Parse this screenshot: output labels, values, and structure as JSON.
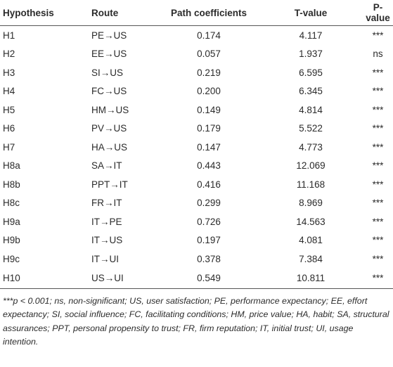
{
  "table": {
    "headers": [
      "Hypothesis",
      "Route",
      "Path coefficients",
      "T-value",
      "P-value"
    ],
    "rows": [
      [
        "H1",
        "PE→US",
        "0.174",
        "4.117",
        "***"
      ],
      [
        "H2",
        "EE→US",
        "0.057",
        "1.937",
        "ns"
      ],
      [
        "H3",
        "SI→US",
        "0.219",
        "6.595",
        "***"
      ],
      [
        "H4",
        "FC→US",
        "0.200",
        "6.345",
        "***"
      ],
      [
        "H5",
        "HM→US",
        "0.149",
        "4.814",
        "***"
      ],
      [
        "H6",
        "PV→US",
        "0.179",
        "5.522",
        "***"
      ],
      [
        "H7",
        "HA→US",
        "0.147",
        "4.773",
        "***"
      ],
      [
        "H8a",
        "SA→IT",
        "0.443",
        "12.069",
        "***"
      ],
      [
        "H8b",
        "PPT→IT",
        "0.416",
        "11.168",
        "***"
      ],
      [
        "H8c",
        "FR→IT",
        "0.299",
        "8.969",
        "***"
      ],
      [
        "H9a",
        "IT→PE",
        "0.726",
        "14.563",
        "***"
      ],
      [
        "H9b",
        "IT→US",
        "0.197",
        "4.081",
        "***"
      ],
      [
        "H9c",
        "IT→UI",
        "0.378",
        "7.384",
        "***"
      ],
      [
        "H10",
        "US→UI",
        "0.549",
        "10.811",
        "***"
      ]
    ]
  },
  "footnote": "***p < 0.001; ns, non-significant; US, user satisfaction; PE, performance expectancy; EE, effort expectancy; SI, social influence; FC, facilitating conditions; HM, price value; HA, habit; SA, structural assurances; PPT, personal propensity to trust; FR, firm reputation; IT, initial trust; UI, usage intention."
}
